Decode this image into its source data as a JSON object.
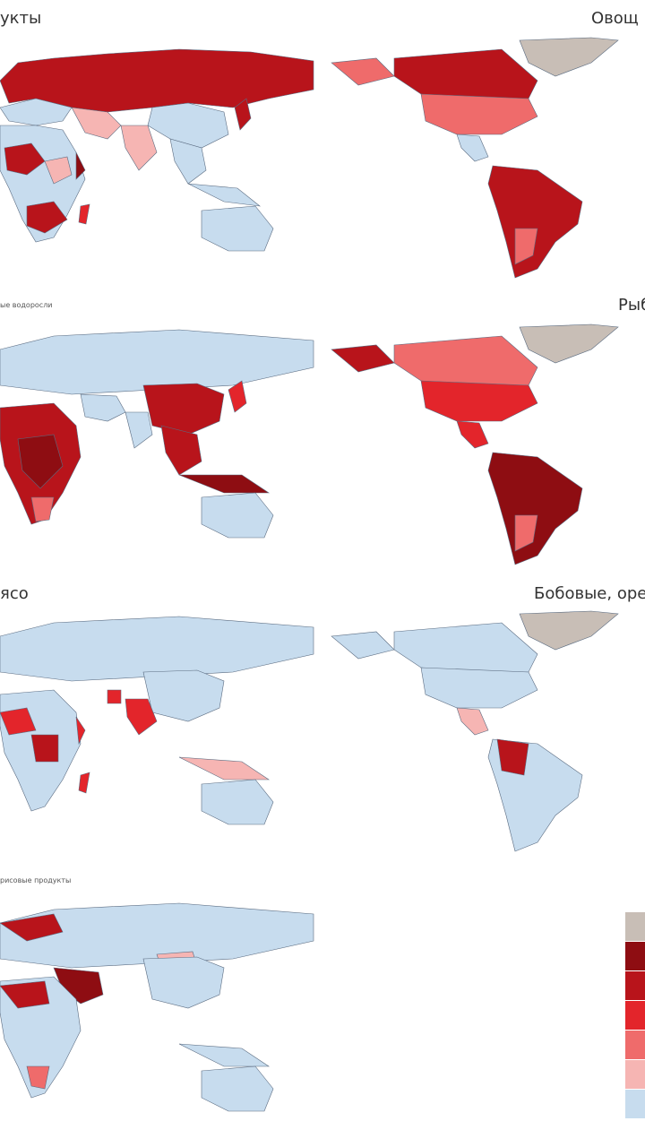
{
  "panels": {
    "p1": {
      "title": "укты"
    },
    "p2": {
      "title": "Овощ"
    },
    "p3": {
      "title": "ые водоросли"
    },
    "p4": {
      "title": "Рыб"
    },
    "p5": {
      "title": "ясо"
    },
    "p6": {
      "title": "Бобовые, оре"
    },
    "p7": {
      "title": "рисовые продукты"
    }
  },
  "legend": {
    "colors": [
      "#c8beb6",
      "#8e0d12",
      "#b8141b",
      "#e3252b",
      "#ef6b6b",
      "#f6b5b3",
      "#c7dcee"
    ]
  },
  "colors": {
    "land_base": "#c7dcee",
    "border": "#5a6b80",
    "greenland": "#c8beb6"
  }
}
